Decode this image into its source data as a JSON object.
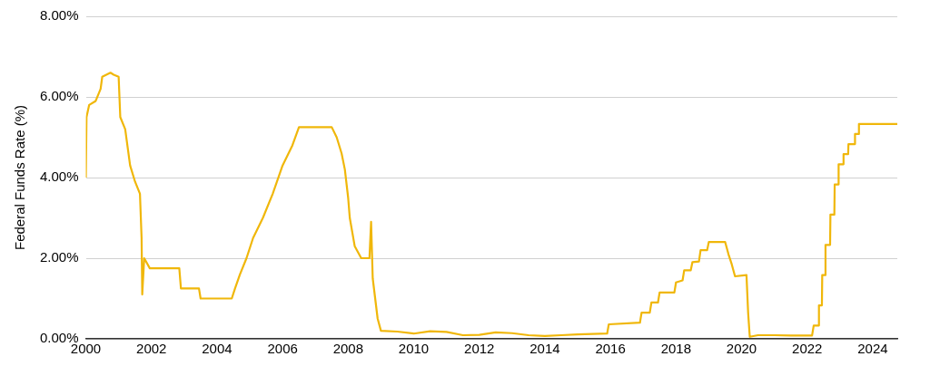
{
  "chart_data": {
    "type": "line",
    "ylabel": "Federal Funds Rate (%)",
    "grid": "y",
    "legend": false,
    "marker": "none",
    "line_style": "solid",
    "xlim": [
      2000,
      2024.75
    ],
    "xticks": [
      2000,
      2002,
      2004,
      2006,
      2008,
      2010,
      2012,
      2014,
      2016,
      2018,
      2020,
      2022,
      2024
    ],
    "ylim": [
      0,
      8
    ],
    "yticks": [
      {
        "value": 0,
        "label": "0.00%"
      },
      {
        "value": 2,
        "label": "2.00%"
      },
      {
        "value": 4,
        "label": "4.00%"
      },
      {
        "value": 6,
        "label": "6.00%"
      },
      {
        "value": 8,
        "label": "8.00%"
      }
    ],
    "series": [
      {
        "color": "#f0b70a",
        "x": [
          2000.0,
          2000.02,
          2000.1,
          2000.3,
          2000.45,
          2000.5,
          2000.75,
          2000.85,
          2001.0,
          2001.05,
          2001.2,
          2001.35,
          2001.5,
          2001.65,
          2001.7,
          2001.72,
          2001.78,
          2001.95,
          2002.5,
          2002.85,
          2002.9,
          2003.45,
          2003.5,
          2004.45,
          2004.55,
          2004.7,
          2004.9,
          2005.1,
          2005.4,
          2005.7,
          2006.0,
          2006.3,
          2006.5,
          2007.5,
          2007.65,
          2007.8,
          2007.9,
          2008.0,
          2008.05,
          2008.2,
          2008.4,
          2008.65,
          2008.7,
          2008.75,
          2008.9,
          2009.0,
          2009.5,
          2010.0,
          2010.5,
          2011.0,
          2011.5,
          2012.0,
          2012.5,
          2013.0,
          2013.5,
          2014.0,
          2014.5,
          2015.0,
          2015.9,
          2015.95,
          2016.9,
          2016.95,
          2017.2,
          2017.25,
          2017.45,
          2017.5,
          2017.95,
          2018.0,
          2018.2,
          2018.25,
          2018.45,
          2018.5,
          2018.7,
          2018.75,
          2018.95,
          2019.0,
          2019.5,
          2019.6,
          2019.7,
          2019.8,
          2020.15,
          2020.2,
          2020.25,
          2020.5,
          2021.0,
          2021.5,
          2022.15,
          2022.2,
          2022.35,
          2022.36,
          2022.45,
          2022.46,
          2022.55,
          2022.56,
          2022.7,
          2022.71,
          2022.83,
          2022.84,
          2022.95,
          2022.96,
          2023.1,
          2023.11,
          2023.25,
          2023.26,
          2023.45,
          2023.46,
          2023.57,
          2023.58,
          2024.75
        ],
        "values": [
          4.0,
          5.5,
          5.8,
          5.9,
          6.2,
          6.5,
          6.6,
          6.55,
          6.5,
          5.5,
          5.2,
          4.3,
          3.9,
          3.6,
          2.5,
          1.1,
          2.0,
          1.75,
          1.75,
          1.75,
          1.25,
          1.25,
          1.0,
          1.0,
          1.25,
          1.6,
          2.0,
          2.5,
          3.0,
          3.6,
          4.3,
          4.8,
          5.25,
          5.25,
          5.0,
          4.6,
          4.2,
          3.5,
          3.0,
          2.3,
          2.0,
          2.0,
          2.9,
          1.5,
          0.5,
          0.2,
          0.18,
          0.13,
          0.19,
          0.17,
          0.09,
          0.1,
          0.16,
          0.14,
          0.09,
          0.07,
          0.09,
          0.11,
          0.13,
          0.36,
          0.4,
          0.65,
          0.65,
          0.9,
          0.9,
          1.15,
          1.15,
          1.4,
          1.45,
          1.7,
          1.7,
          1.9,
          1.92,
          2.2,
          2.2,
          2.4,
          2.4,
          2.1,
          1.85,
          1.55,
          1.58,
          0.65,
          0.05,
          0.09,
          0.09,
          0.08,
          0.08,
          0.33,
          0.33,
          0.83,
          0.83,
          1.58,
          1.58,
          2.33,
          2.33,
          3.08,
          3.08,
          3.83,
          3.83,
          4.33,
          4.33,
          4.58,
          4.58,
          4.83,
          4.83,
          5.08,
          5.08,
          5.33,
          5.33
        ]
      }
    ]
  }
}
